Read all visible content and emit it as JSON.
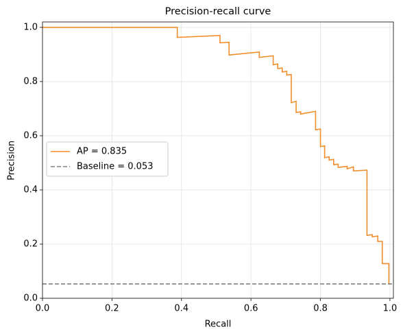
{
  "chart_data": {
    "type": "line",
    "title": "Precision-recall curve",
    "xlabel": "Recall",
    "ylabel": "Precision",
    "xlim": [
      0,
      1.01
    ],
    "ylim": [
      0,
      1.02
    ],
    "xticks": [
      {
        "value": 0,
        "label": "0.0"
      },
      0.2,
      0.4,
      0.6,
      0.8,
      {
        "value": 1,
        "label": "1.0"
      }
    ],
    "yticks": [
      {
        "value": 0,
        "label": "0.0"
      },
      0.2,
      0.4,
      0.6,
      0.8,
      {
        "value": 1,
        "label": "1.0"
      }
    ],
    "grid": true,
    "legend": "center left",
    "x": [
      0,
      0.388,
      0.388,
      0.511,
      0.511,
      0.537,
      0.537,
      0.624,
      0.624,
      0.664,
      0.664,
      0.677,
      0.677,
      0.69,
      0.69,
      0.703,
      0.703,
      0.716,
      0.716,
      0.73,
      0.73,
      0.743,
      0.743,
      0.786,
      0.786,
      0.8,
      0.8,
      0.812,
      0.812,
      0.825,
      0.825,
      0.838,
      0.838,
      0.851,
      0.851,
      0.877,
      0.877,
      0.895,
      0.895,
      0.934,
      0.934,
      0.949,
      0.949,
      0.965,
      0.965,
      0.978,
      0.978,
      0.997,
      0.997
    ],
    "series": [
      {
        "name": "AP = 0.835",
        "color": "#f28e2b",
        "values": [
          1.0,
          1.0,
          0.963,
          0.97,
          0.943,
          0.945,
          0.898,
          0.909,
          0.889,
          0.895,
          0.862,
          0.865,
          0.848,
          0.85,
          0.835,
          0.838,
          0.824,
          0.826,
          0.722,
          0.727,
          0.686,
          0.688,
          0.68,
          0.69,
          0.622,
          0.625,
          0.56,
          0.563,
          0.519,
          0.522,
          0.51,
          0.513,
          0.493,
          0.495,
          0.483,
          0.487,
          0.478,
          0.485,
          0.47,
          0.473,
          0.232,
          0.235,
          0.227,
          0.23,
          0.21,
          0.21,
          0.128,
          0.128,
          0.053
        ]
      },
      {
        "name": "Baseline = 0.053",
        "color": "#808080",
        "dashed": true,
        "value": 0.053
      }
    ]
  }
}
